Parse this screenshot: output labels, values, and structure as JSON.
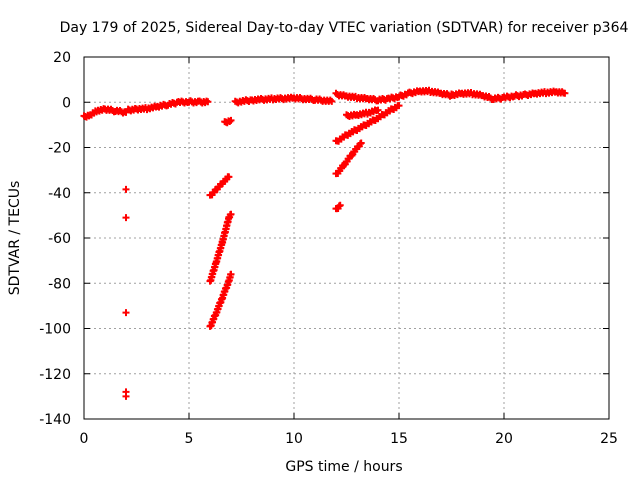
{
  "chart_data": {
    "type": "scatter",
    "title": "Day 179 of 2025, Sidereal Day-to-day VTEC variation (SDTVAR) for receiver p364",
    "xlabel": "GPS time / hours",
    "ylabel": "SDTVAR / TECUs",
    "xlim": [
      0,
      25
    ],
    "ylim": [
      -140,
      20
    ],
    "xticks": [
      0,
      5,
      10,
      15,
      20,
      25
    ],
    "yticks": [
      -140,
      -120,
      -100,
      -80,
      -60,
      -40,
      -20,
      0,
      20
    ],
    "grid": true,
    "marker": "plus",
    "series_color": "#ff0000",
    "segments": [
      {
        "name": "main-arc-a",
        "points": [
          [
            0.0,
            -6.5
          ],
          [
            0.3,
            -5.5
          ],
          [
            0.6,
            -3.8
          ],
          [
            1.0,
            -3.2
          ],
          [
            1.5,
            -3.8
          ],
          [
            2.0,
            -4.5
          ]
        ]
      },
      {
        "name": "main-arc-b",
        "points": [
          [
            2.1,
            -3.5
          ],
          [
            2.5,
            -3.0
          ],
          [
            3.0,
            -2.8
          ],
          [
            3.5,
            -2.0
          ],
          [
            4.0,
            -1.0
          ],
          [
            4.5,
            0.0
          ],
          [
            5.0,
            0.2
          ],
          [
            5.5,
            0.1
          ],
          [
            5.9,
            0.2
          ]
        ]
      },
      {
        "name": "low-isolated",
        "points": [
          [
            2.0,
            -38.5
          ],
          [
            2.0,
            -51.0
          ],
          [
            2.0,
            -93.0
          ],
          [
            2.0,
            -128.0
          ],
          [
            2.0,
            -130.0
          ]
        ]
      },
      {
        "name": "steep-arc-1",
        "points": [
          [
            6.0,
            -41.5
          ],
          [
            6.3,
            -38.5
          ],
          [
            6.6,
            -35.5
          ],
          [
            6.9,
            -33.0
          ]
        ]
      },
      {
        "name": "steep-arc-2",
        "points": [
          [
            6.0,
            -79.5
          ],
          [
            6.3,
            -70.5
          ],
          [
            6.6,
            -61.5
          ],
          [
            6.9,
            -51.0
          ],
          [
            7.0,
            -49.5
          ]
        ]
      },
      {
        "name": "steep-arc-3",
        "points": [
          [
            6.0,
            -99.5
          ],
          [
            6.3,
            -93.0
          ],
          [
            6.6,
            -86.0
          ],
          [
            6.9,
            -79.0
          ],
          [
            7.0,
            -76.0
          ]
        ]
      },
      {
        "name": "short-arc-7h",
        "points": [
          [
            6.7,
            -9.0
          ],
          [
            7.0,
            -8.0
          ]
        ]
      },
      {
        "name": "mid-arc",
        "points": [
          [
            7.2,
            0.0
          ],
          [
            8.0,
            1.0
          ],
          [
            9.0,
            1.5
          ],
          [
            10.0,
            1.8
          ],
          [
            11.0,
            1.2
          ],
          [
            11.8,
            0.4
          ]
        ]
      },
      {
        "name": "arc-12h-low",
        "points": [
          [
            12.0,
            -47.5
          ],
          [
            12.2,
            -45.5
          ]
        ]
      },
      {
        "name": "arc-12h-mid",
        "points": [
          [
            12.0,
            -32.0
          ],
          [
            12.4,
            -27.5
          ],
          [
            12.8,
            -22.5
          ],
          [
            13.2,
            -18.0
          ]
        ]
      },
      {
        "name": "arc-12h-rise",
        "points": [
          [
            12.0,
            -17.5
          ],
          [
            12.5,
            -14.5
          ],
          [
            13.0,
            -12.0
          ],
          [
            13.5,
            -9.5
          ],
          [
            14.0,
            -7.0
          ],
          [
            14.5,
            -4.0
          ],
          [
            15.0,
            -1.5
          ]
        ]
      },
      {
        "name": "arc-12h-short",
        "points": [
          [
            12.5,
            -6.0
          ],
          [
            13.0,
            -5.5
          ],
          [
            13.5,
            -4.8
          ],
          [
            14.0,
            -3.5
          ]
        ]
      },
      {
        "name": "late-arc-a",
        "points": [
          [
            12.0,
            3.5
          ],
          [
            12.5,
            2.8
          ],
          [
            13.0,
            2.0
          ],
          [
            13.5,
            1.5
          ],
          [
            14.0,
            1.0
          ],
          [
            14.5,
            1.5
          ],
          [
            15.0,
            2.5
          ],
          [
            15.5,
            4.0
          ],
          [
            16.0,
            5.0
          ],
          [
            16.5,
            4.8
          ],
          [
            17.0,
            3.8
          ],
          [
            17.5,
            3.0
          ]
        ]
      },
      {
        "name": "late-arc-b",
        "points": [
          [
            17.5,
            3.2
          ],
          [
            18.0,
            4.0
          ],
          [
            18.5,
            3.8
          ],
          [
            19.0,
            2.8
          ],
          [
            19.5,
            1.5
          ],
          [
            20.0,
            2.0
          ],
          [
            20.5,
            2.8
          ],
          [
            21.0,
            3.2
          ],
          [
            21.5,
            4.0
          ],
          [
            22.0,
            4.3
          ],
          [
            22.5,
            4.5
          ],
          [
            22.9,
            4.0
          ]
        ]
      }
    ]
  }
}
